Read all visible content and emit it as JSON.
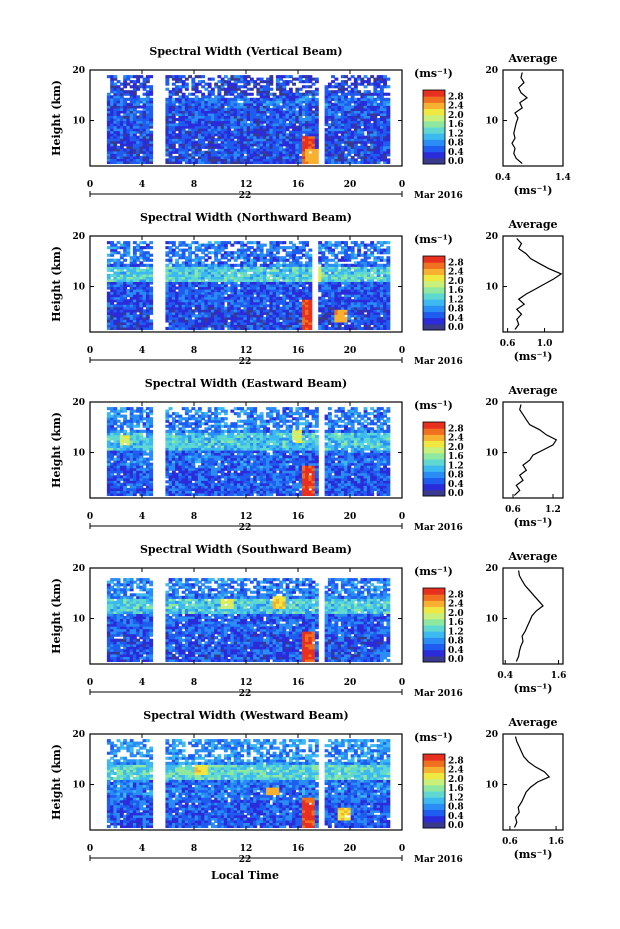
{
  "figure": {
    "xaxis_label": "Local Time",
    "date_label": "Mar 2016"
  },
  "colorbar": {
    "unit_label": "(ms⁻¹)",
    "ticks": [
      "0.0",
      "0.4",
      "0.8",
      "1.2",
      "1.6",
      "2.0",
      "2.4",
      "2.8"
    ],
    "colors": [
      "#3a3a8c",
      "#2b2bd9",
      "#1f5cf0",
      "#2a8cf5",
      "#3cb9f0",
      "#5ed8d0",
      "#8ee8a0",
      "#c8f07a",
      "#f0e840",
      "#f8b030",
      "#f07020",
      "#e83020"
    ]
  },
  "chart_data": [
    {
      "type": "heatmap",
      "title": "Spectral Width (Vertical Beam)",
      "ylabel": "Height (km)",
      "xlim": [
        0,
        24
      ],
      "ylim": [
        1,
        20
      ],
      "xticks": [
        "0",
        "4",
        "8",
        "12",
        "16",
        "20",
        "0"
      ],
      "yticks": [
        "20",
        "10"
      ],
      "date_tick": "22",
      "bands": [
        {
          "y0": 1.5,
          "y1": 7,
          "level": 0.5
        },
        {
          "y0": 7,
          "y1": 13,
          "level": 0.55
        },
        {
          "y0": 13,
          "y1": 15,
          "level": 0.7
        },
        {
          "y0": 15,
          "y1": 19,
          "level": 0.45
        }
      ],
      "hotspots": [
        {
          "t": 16.6,
          "y0": 1.5,
          "y1": 6.5,
          "level": 2.8
        },
        {
          "t": 17.0,
          "y0": 1.5,
          "y1": 4,
          "level": 2.4
        }
      ],
      "gaps": [
        [
          5.0,
          5.8
        ],
        [
          17.6,
          17.9
        ]
      ],
      "profile": {
        "title": "Average",
        "xlabel": "(ms⁻¹)",
        "xticks": [
          "0.4",
          "1.4"
        ],
        "xlim": [
          0.4,
          1.4
        ],
        "heights": [
          1.5,
          2.5,
          3.5,
          4.5,
          5.5,
          6.5,
          7.5,
          8.5,
          9.5,
          10.5,
          11.5,
          12.5,
          13.5,
          14.5,
          15.5,
          16.5,
          17.5,
          18.5,
          19.5
        ],
        "values": [
          0.72,
          0.62,
          0.58,
          0.6,
          0.55,
          0.6,
          0.58,
          0.6,
          0.62,
          0.65,
          0.6,
          0.72,
          0.68,
          0.8,
          0.7,
          0.66,
          0.75,
          0.7,
          0.72
        ]
      }
    },
    {
      "type": "heatmap",
      "title": "Spectral Width (Northward Beam)",
      "ylabel": "Height (km)",
      "xlim": [
        0,
        24
      ],
      "ylim": [
        1,
        20
      ],
      "xticks": [
        "0",
        "4",
        "8",
        "12",
        "16",
        "20",
        "0"
      ],
      "yticks": [
        "20",
        "10"
      ],
      "date_tick": "22",
      "bands": [
        {
          "y0": 1.5,
          "y1": 6,
          "level": 0.5
        },
        {
          "y0": 6,
          "y1": 11,
          "level": 0.6
        },
        {
          "y0": 11,
          "y1": 14,
          "level": 1.3
        },
        {
          "y0": 14,
          "y1": 19,
          "level": 0.75
        }
      ],
      "hotspots": [
        {
          "t": 16.6,
          "y0": 1.5,
          "y1": 7,
          "level": 2.8
        },
        {
          "t": 17.3,
          "y0": 11,
          "y1": 14,
          "level": 2.0
        },
        {
          "t": 19.2,
          "y0": 3,
          "y1": 5,
          "level": 2.4
        }
      ],
      "gaps": [
        [
          5.0,
          5.8
        ],
        [
          17.1,
          17.4
        ]
      ],
      "profile": {
        "title": "Average",
        "xlabel": "(ms⁻¹)",
        "xticks": [
          "0.6",
          "1.0"
        ],
        "xlim": [
          0.55,
          1.2
        ],
        "heights": [
          1.5,
          2.5,
          3.5,
          4.5,
          5.5,
          6.5,
          7.5,
          8.5,
          9.5,
          10.5,
          11.5,
          12.5,
          13.5,
          14.5,
          15.5,
          16.5,
          17.5,
          18.5,
          19.5
        ],
        "values": [
          0.68,
          0.72,
          0.7,
          0.75,
          0.7,
          0.78,
          0.72,
          0.8,
          0.9,
          1.0,
          1.1,
          1.18,
          1.05,
          0.95,
          0.85,
          0.8,
          0.72,
          0.75,
          0.7
        ]
      }
    },
    {
      "type": "heatmap",
      "title": "Spectral Width (Eastward Beam)",
      "ylabel": "Height (km)",
      "xlim": [
        0,
        24
      ],
      "ylim": [
        1,
        20
      ],
      "xticks": [
        "0",
        "4",
        "8",
        "12",
        "16",
        "20",
        "0"
      ],
      "yticks": [
        "20",
        "10"
      ],
      "date_tick": "22",
      "bands": [
        {
          "y0": 1.5,
          "y1": 7,
          "level": 0.6
        },
        {
          "y0": 7,
          "y1": 10.5,
          "level": 0.7
        },
        {
          "y0": 10.5,
          "y1": 14,
          "level": 1.2
        },
        {
          "y0": 14,
          "y1": 19,
          "level": 0.8
        }
      ],
      "hotspots": [
        {
          "t": 16.6,
          "y0": 1.5,
          "y1": 7,
          "level": 2.8
        },
        {
          "t": 15.8,
          "y0": 12,
          "y1": 14,
          "level": 2.0
        },
        {
          "t": 2.5,
          "y0": 11.5,
          "y1": 13,
          "level": 2.0
        }
      ],
      "gaps": [
        [
          5.0,
          5.8
        ],
        [
          17.6,
          17.9
        ]
      ],
      "profile": {
        "title": "Average",
        "xlabel": "(ms⁻¹)",
        "xticks": [
          "0.6",
          "1.2"
        ],
        "xlim": [
          0.45,
          1.35
        ],
        "heights": [
          1.5,
          2.5,
          3.5,
          4.5,
          5.5,
          6.5,
          7.5,
          8.5,
          9.5,
          10.5,
          11.5,
          12.5,
          13.5,
          14.5,
          15.5,
          16.5,
          17.5,
          18.5,
          19.5
        ],
        "values": [
          0.62,
          0.7,
          0.65,
          0.75,
          0.7,
          0.8,
          0.75,
          0.85,
          0.9,
          1.05,
          1.2,
          1.25,
          1.1,
          1.0,
          0.85,
          0.8,
          0.75,
          0.7,
          0.72
        ]
      }
    },
    {
      "type": "heatmap",
      "title": "Spectral Width (Southward Beam)",
      "ylabel": "Height (km)",
      "xlim": [
        0,
        24
      ],
      "ylim": [
        1,
        20
      ],
      "xticks": [
        "0",
        "4",
        "8",
        "12",
        "16",
        "20",
        "0"
      ],
      "yticks": [
        "20",
        "10"
      ],
      "date_tick": "22",
      "bands": [
        {
          "y0": 1.5,
          "y1": 7,
          "level": 0.55
        },
        {
          "y0": 7,
          "y1": 11,
          "level": 0.65
        },
        {
          "y0": 11,
          "y1": 14,
          "level": 1.25
        },
        {
          "y0": 14,
          "y1": 18,
          "level": 0.8
        }
      ],
      "hotspots": [
        {
          "t": 16.6,
          "y0": 1.5,
          "y1": 7,
          "level": 2.8
        },
        {
          "t": 14.5,
          "y0": 12,
          "y1": 14,
          "level": 2.2
        },
        {
          "t": 10.5,
          "y0": 12,
          "y1": 13.5,
          "level": 2.0
        }
      ],
      "gaps": [
        [
          5.0,
          5.8
        ],
        [
          17.6,
          17.9
        ]
      ],
      "profile": {
        "title": "Average",
        "xlabel": "(ms⁻¹)",
        "xticks": [
          "0.4",
          "1.6"
        ],
        "xlim": [
          0.35,
          1.7
        ],
        "heights": [
          1.5,
          2.5,
          3.5,
          4.5,
          5.5,
          6.5,
          7.5,
          8.5,
          9.5,
          10.5,
          11.5,
          12.5,
          13.5,
          14.5,
          15.5,
          16.5,
          17.5,
          18.5,
          19.5
        ],
        "values": [
          0.65,
          0.7,
          0.72,
          0.75,
          0.8,
          0.78,
          0.85,
          0.9,
          0.95,
          1.0,
          1.1,
          1.25,
          1.15,
          1.05,
          0.95,
          0.85,
          0.78,
          0.72,
          0.7
        ]
      }
    },
    {
      "type": "heatmap",
      "title": "Spectral Width (Westward Beam)",
      "ylabel": "Height (km)",
      "xlim": [
        0,
        24
      ],
      "ylim": [
        1,
        20
      ],
      "xticks": [
        "0",
        "4",
        "8",
        "12",
        "16",
        "20",
        "0"
      ],
      "yticks": [
        "20",
        "10"
      ],
      "date_tick": "22",
      "bands": [
        {
          "y0": 1.5,
          "y1": 7,
          "level": 0.6
        },
        {
          "y0": 7,
          "y1": 11,
          "level": 0.75
        },
        {
          "y0": 11,
          "y1": 14,
          "level": 1.35
        },
        {
          "y0": 14,
          "y1": 19,
          "level": 0.9
        }
      ],
      "hotspots": [
        {
          "t": 16.6,
          "y0": 1.5,
          "y1": 7,
          "level": 2.8
        },
        {
          "t": 8.5,
          "y0": 12,
          "y1": 13.5,
          "level": 2.2
        },
        {
          "t": 14.0,
          "y0": 8,
          "y1": 9,
          "level": 2.4
        },
        {
          "t": 19.5,
          "y0": 3,
          "y1": 5,
          "level": 2.2
        }
      ],
      "gaps": [
        [
          5.0,
          5.8
        ],
        [
          17.6,
          17.9
        ]
      ],
      "profile": {
        "title": "Average",
        "xlabel": "(ms⁻¹)",
        "xticks": [
          "0.6",
          "1.6"
        ],
        "xlim": [
          0.45,
          1.75
        ],
        "heights": [
          1.5,
          2.5,
          3.5,
          4.5,
          5.5,
          6.5,
          7.5,
          8.5,
          9.5,
          10.5,
          11.5,
          12.5,
          13.5,
          14.5,
          15.5,
          16.5,
          17.5,
          18.5,
          19.5
        ],
        "values": [
          0.7,
          0.75,
          0.72,
          0.8,
          0.78,
          0.85,
          0.9,
          0.95,
          1.05,
          1.2,
          1.45,
          1.35,
          1.15,
          1.0,
          0.9,
          0.85,
          0.8,
          0.75,
          0.72
        ]
      }
    }
  ]
}
